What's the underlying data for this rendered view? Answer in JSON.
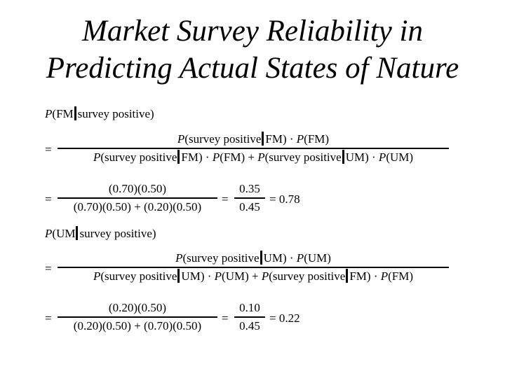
{
  "title": {
    "line1": "Market Survey Reliability in",
    "line2": "Predicting Actual States of Nature"
  },
  "symbols": {
    "P": "P",
    "lparen": "(",
    "rparen": ")",
    "dot": "·",
    "plus": "+",
    "equals": "="
  },
  "fm_block": {
    "lhs_event": "FM",
    "lhs_given": "survey positive)",
    "num": {
      "event": "survey positive",
      "given": "FM)",
      "prior": "(FM)"
    },
    "den": {
      "t1_event": "survey positive",
      "t1_given": "FM)",
      "t1_prior": "(FM)",
      "t2_event": "survey positive",
      "t2_given": "UM)",
      "t2_prior": "(UM)"
    },
    "numeric_num": "(0.70)(0.50)",
    "numeric_den": "(0.70)(0.50) + (0.20)(0.50)",
    "reduced_num": "0.35",
    "reduced_den": "0.45",
    "result": "0.78"
  },
  "um_block": {
    "lhs_event": "UM",
    "lhs_given": "survey positive)",
    "num": {
      "event": "survey positive",
      "given": "UM)",
      "prior": "(UM)"
    },
    "den": {
      "t1_event": "survey positive",
      "t1_given": "UM)",
      "t1_prior": "(UM)",
      "t2_event": "survey positive",
      "t2_given": "FM)",
      "t2_prior": "(FM)"
    },
    "numeric_num": "(0.20)(0.50)",
    "numeric_den": "(0.20)(0.50) + (0.70)(0.50)",
    "reduced_num": "0.10",
    "reduced_den": "0.45",
    "result": "0.22"
  }
}
